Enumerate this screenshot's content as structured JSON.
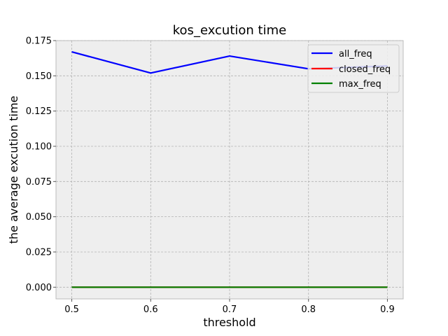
{
  "chart_data": {
    "type": "line",
    "title": "kos_excution time",
    "xlabel": "threshold",
    "ylabel": "the average excution time",
    "x": [
      0.5,
      0.6,
      0.7,
      0.8,
      0.9
    ],
    "xticks": [
      "0.5",
      "0.6",
      "0.7",
      "0.8",
      "0.9"
    ],
    "xlim": [
      0.48,
      0.92
    ],
    "yticks": [
      "0.000",
      "0.025",
      "0.050",
      "0.075",
      "0.100",
      "0.125",
      "0.150",
      "0.175"
    ],
    "ylim": [
      -0.0083,
      0.175
    ],
    "grid": true,
    "legend_position": "top-right",
    "series": [
      {
        "name": "all_freq",
        "color": "#0000ff",
        "values": [
          0.167,
          0.152,
          0.164,
          0.155,
          0.157
        ]
      },
      {
        "name": "closed_freq",
        "color": "#ff0000",
        "values": [
          0.0,
          0.0,
          0.0,
          0.0,
          0.0
        ]
      },
      {
        "name": "max_freq",
        "color": "#008000",
        "values": [
          0.0,
          0.0,
          0.0,
          0.0,
          0.0
        ]
      }
    ]
  }
}
